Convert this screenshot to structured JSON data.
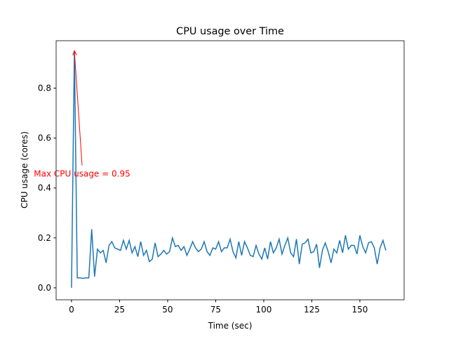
{
  "chart_data": {
    "type": "line",
    "title": "CPU usage over Time",
    "xlabel": "Time (sec)",
    "ylabel": "CPU usage (cores)",
    "x": [
      0,
      1.5,
      3,
      4.5,
      6,
      7.5,
      9,
      10.5,
      12,
      13.5,
      15,
      16.5,
      18,
      19.5,
      21,
      22.5,
      24,
      25.5,
      27,
      28.5,
      30,
      31.5,
      33,
      34.5,
      36,
      37.5,
      39,
      40.5,
      42,
      43.5,
      45,
      46.5,
      48,
      49.5,
      51,
      52.5,
      54,
      55.5,
      57,
      58.5,
      60,
      61.5,
      63,
      64.5,
      66,
      67.5,
      69,
      70.5,
      72,
      73.5,
      75,
      76.5,
      78,
      79.5,
      81,
      82.5,
      84,
      85.5,
      87,
      88.5,
      90,
      91.5,
      93,
      94.5,
      96,
      97.5,
      99,
      100.5,
      102,
      103.5,
      105,
      106.5,
      108,
      109.5,
      111,
      112.5,
      114,
      115.5,
      117,
      118.5,
      120,
      121.5,
      123,
      124.5,
      126,
      127.5,
      129,
      130.5,
      132,
      133.5,
      135,
      136.5,
      138,
      139.5,
      141,
      142.5,
      144,
      145.5,
      147,
      148.5,
      150,
      151.5,
      153,
      154.5,
      156,
      157.5,
      159,
      160.5,
      162,
      163.5
    ],
    "series": [
      {
        "name": "CPU usage",
        "color": "#1f77b4",
        "values": [
          0,
          0.95,
          0.04,
          0.04,
          0.038,
          0.04,
          0.04,
          0.235,
          0.045,
          0.155,
          0.14,
          0.15,
          0.1,
          0.17,
          0.185,
          0.16,
          0.155,
          0.15,
          0.19,
          0.155,
          0.19,
          0.14,
          0.165,
          0.125,
          0.185,
          0.13,
          0.15,
          0.105,
          0.115,
          0.18,
          0.125,
          0.135,
          0.15,
          0.135,
          0.145,
          0.2,
          0.165,
          0.17,
          0.15,
          0.165,
          0.13,
          0.155,
          0.185,
          0.16,
          0.145,
          0.155,
          0.185,
          0.145,
          0.13,
          0.16,
          0.155,
          0.185,
          0.145,
          0.16,
          0.16,
          0.195,
          0.145,
          0.12,
          0.185,
          0.13,
          0.185,
          0.16,
          0.13,
          0.125,
          0.17,
          0.135,
          0.115,
          0.16,
          0.115,
          0.185,
          0.14,
          0.16,
          0.195,
          0.135,
          0.17,
          0.2,
          0.14,
          0.125,
          0.195,
          0.095,
          0.175,
          0.18,
          0.195,
          0.14,
          0.145,
          0.175,
          0.08,
          0.15,
          0.18,
          0.145,
          0.1,
          0.155,
          0.14,
          0.19,
          0.14,
          0.21,
          0.155,
          0.17,
          0.17,
          0.135,
          0.21,
          0.165,
          0.14,
          0.18,
          0.185,
          0.16,
          0.095,
          0.16,
          0.19,
          0.15
        ]
      }
    ],
    "xlim": [
      -8,
      173
    ],
    "xticks": [
      0,
      25,
      50,
      75,
      100,
      125,
      150
    ],
    "ylim": [
      -0.048,
      0.99
    ],
    "yticks": [
      {
        "value": 0,
        "label": "0.0"
      },
      0.2,
      0.4,
      0.6,
      0.8
    ],
    "annotation": {
      "text": "Max CPU usage = 0.95",
      "xy": [
        1.5,
        0.95
      ],
      "xytext": [
        5.5,
        0.49
      ],
      "color": "red"
    }
  }
}
